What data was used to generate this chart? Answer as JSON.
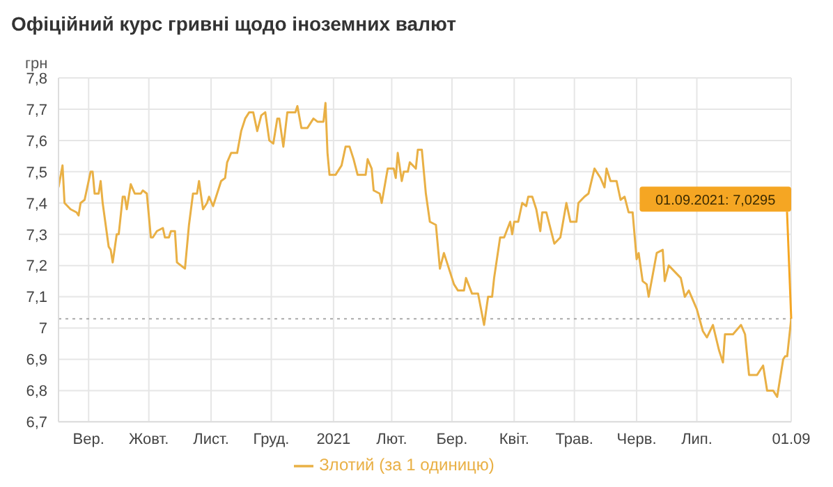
{
  "chart_data": {
    "type": "line",
    "title": "Офіційний курс гривні щодо іноземних валют",
    "ylabel": "грн",
    "x": [
      "2020-09-01",
      "2020-09-03",
      "2020-09-04",
      "2020-09-07",
      "2020-09-10",
      "2020-09-11",
      "2020-09-12",
      "2020-09-14",
      "2020-09-17",
      "2020-09-18",
      "2020-09-19",
      "2020-09-21",
      "2020-09-22",
      "2020-09-23",
      "2020-09-26",
      "2020-09-27",
      "2020-09-28",
      "2020-09-30",
      "2020-10-01",
      "2020-10-03",
      "2020-10-04",
      "2020-10-05",
      "2020-10-07",
      "2020-10-09",
      "2020-10-12",
      "2020-10-13",
      "2020-10-15",
      "2020-10-17",
      "2020-10-18",
      "2020-10-20",
      "2020-10-23",
      "2020-10-24",
      "2020-10-26",
      "2020-10-27",
      "2020-10-29",
      "2020-10-30",
      "2020-11-03",
      "2020-11-05",
      "2020-11-07",
      "2020-11-09",
      "2020-11-10",
      "2020-11-12",
      "2020-11-14",
      "2020-11-15",
      "2020-11-17",
      "2020-11-19",
      "2020-11-21",
      "2020-11-23",
      "2020-11-24",
      "2020-11-26",
      "2020-11-29",
      "2020-12-01",
      "2020-12-03",
      "2020-12-05",
      "2020-12-07",
      "2020-12-09",
      "2020-12-11",
      "2020-12-13",
      "2020-12-15",
      "2020-12-17",
      "2020-12-19",
      "2020-12-20",
      "2020-12-22",
      "2020-12-24",
      "2020-12-28",
      "2020-12-29",
      "2020-12-31",
      "2021-01-03",
      "2021-01-06",
      "2021-01-08",
      "2021-01-11",
      "2021-01-12",
      "2021-01-13",
      "2021-01-14",
      "2021-01-17",
      "2021-01-20",
      "2021-01-22",
      "2021-01-24",
      "2021-01-26",
      "2021-01-28",
      "2021-02-01",
      "2021-02-02",
      "2021-02-04",
      "2021-02-05",
      "2021-02-08",
      "2021-02-09",
      "2021-02-12",
      "2021-02-15",
      "2021-02-16",
      "2021-02-17",
      "2021-02-19",
      "2021-02-20",
      "2021-02-22",
      "2021-02-23",
      "2021-02-26",
      "2021-02-27",
      "2021-03-01",
      "2021-03-03",
      "2021-03-05",
      "2021-03-08",
      "2021-03-10",
      "2021-03-12",
      "2021-03-17",
      "2021-03-19",
      "2021-03-22",
      "2021-03-23",
      "2021-03-26",
      "2021-03-29",
      "2021-04-01",
      "2021-04-03",
      "2021-04-05",
      "2021-04-06",
      "2021-04-09",
      "2021-04-11",
      "2021-04-14",
      "2021-04-15",
      "2021-04-16",
      "2021-04-18",
      "2021-04-20",
      "2021-04-22",
      "2021-04-23",
      "2021-04-25",
      "2021-04-27",
      "2021-04-29",
      "2021-04-30",
      "2021-05-02",
      "2021-05-06",
      "2021-05-09",
      "2021-05-12",
      "2021-05-14",
      "2021-05-17",
      "2021-05-18",
      "2021-05-21",
      "2021-05-23",
      "2021-05-26",
      "2021-05-29",
      "2021-05-31",
      "2021-06-01",
      "2021-06-03",
      "2021-06-06",
      "2021-06-08",
      "2021-06-10",
      "2021-06-12",
      "2021-06-14",
      "2021-06-16",
      "2021-06-17",
      "2021-06-19",
      "2021-06-21",
      "2021-06-22",
      "2021-06-26",
      "2021-06-29",
      "2021-06-30",
      "2021-07-02",
      "2021-07-05",
      "2021-07-08",
      "2021-07-10",
      "2021-07-12",
      "2021-07-16",
      "2021-07-19",
      "2021-07-21",
      "2021-07-24",
      "2021-07-27",
      "2021-07-29",
      "2021-07-30",
      "2021-08-03",
      "2021-08-07",
      "2021-08-09",
      "2021-08-11",
      "2021-08-15",
      "2021-08-18",
      "2021-08-20",
      "2021-08-23",
      "2021-08-25",
      "2021-08-28",
      "2021-08-29",
      "2021-08-30",
      "2021-09-01"
    ],
    "series": [
      {
        "name": "Злотий (за 1 одиницю)",
        "color": "#e9b045",
        "values": [
          7.45,
          7.52,
          7.4,
          7.38,
          7.37,
          7.36,
          7.4,
          7.41,
          7.5,
          7.5,
          7.43,
          7.43,
          7.47,
          7.4,
          7.26,
          7.25,
          7.21,
          7.3,
          7.3,
          7.42,
          7.42,
          7.38,
          7.46,
          7.43,
          7.43,
          7.44,
          7.43,
          7.29,
          7.29,
          7.31,
          7.32,
          7.29,
          7.29,
          7.31,
          7.31,
          7.21,
          7.19,
          7.33,
          7.43,
          7.43,
          7.47,
          7.38,
          7.4,
          7.42,
          7.39,
          7.43,
          7.47,
          7.48,
          7.53,
          7.56,
          7.56,
          7.63,
          7.67,
          7.69,
          7.69,
          7.63,
          7.68,
          7.69,
          7.6,
          7.59,
          7.67,
          7.67,
          7.58,
          7.69,
          7.69,
          7.71,
          7.64,
          7.64,
          7.67,
          7.66,
          7.66,
          7.72,
          7.56,
          7.49,
          7.49,
          7.52,
          7.58,
          7.58,
          7.54,
          7.49,
          7.49,
          7.54,
          7.51,
          7.44,
          7.43,
          7.4,
          7.51,
          7.51,
          7.48,
          7.56,
          7.47,
          7.5,
          7.5,
          7.53,
          7.51,
          7.57,
          7.57,
          7.43,
          7.34,
          7.33,
          7.19,
          7.24,
          7.14,
          7.12,
          7.12,
          7.16,
          7.11,
          7.11,
          7.01,
          7.1,
          7.1,
          7.16,
          7.29,
          7.29,
          7.34,
          7.3,
          7.34,
          7.34,
          7.4,
          7.39,
          7.42,
          7.42,
          7.38,
          7.31,
          7.37,
          7.37,
          7.27,
          7.29,
          7.4,
          7.34,
          7.34,
          7.4,
          7.42,
          7.43,
          7.51,
          7.48,
          7.45,
          7.51,
          7.47,
          7.47,
          7.41,
          7.42,
          7.37,
          7.37,
          7.22,
          7.24,
          7.15,
          7.14,
          7.1,
          7.24,
          7.25,
          7.15,
          7.2,
          7.18,
          7.16,
          7.1,
          7.12,
          7.06,
          6.99,
          6.97,
          7.01,
          6.93,
          6.89,
          6.98,
          6.98,
          7.01,
          6.98,
          6.85,
          6.85,
          6.88,
          6.8,
          6.8,
          6.78,
          6.9,
          6.91,
          6.91,
          7.0295
        ]
      }
    ],
    "xlim": [
      "2020-09-01",
      "2021-09-01"
    ],
    "xticks": [
      {
        "value": "2020-09-16",
        "label": "Вер."
      },
      {
        "value": "2020-10-16",
        "label": "Жовт."
      },
      {
        "value": "2020-11-16",
        "label": "Лист."
      },
      {
        "value": "2020-12-16",
        "label": "Груд."
      },
      {
        "value": "2021-01-16",
        "label": "2021"
      },
      {
        "value": "2021-02-14",
        "label": "Лют."
      },
      {
        "value": "2021-03-16",
        "label": "Бер."
      },
      {
        "value": "2021-04-16",
        "label": "Квіт."
      },
      {
        "value": "2021-05-16",
        "label": "Трав."
      },
      {
        "value": "2021-06-16",
        "label": "Черв."
      },
      {
        "value": "2021-07-16",
        "label": "Лип."
      },
      {
        "value": "2021-09-01",
        "label": "01.09"
      }
    ],
    "ylim": [
      6.7,
      7.8
    ],
    "yticks": [
      {
        "value": 6.7,
        "label": "6,7"
      },
      {
        "value": 6.8,
        "label": "6,8"
      },
      {
        "value": 6.9,
        "label": "6,9"
      },
      {
        "value": 7,
        "label": "7"
      },
      {
        "value": 7.1,
        "label": "7,1"
      },
      {
        "value": 7.2,
        "label": "7,2"
      },
      {
        "value": 7.3,
        "label": "7,3"
      },
      {
        "value": 7.4,
        "label": "7,4"
      },
      {
        "value": 7.5,
        "label": "7,5"
      },
      {
        "value": 7.6,
        "label": "7,6"
      },
      {
        "value": 7.7,
        "label": "7,7"
      },
      {
        "value": 7.8,
        "label": "7,8"
      }
    ],
    "ref_lines": [
      {
        "axis": "y",
        "value": 7.0295,
        "label": null,
        "color": "#aaaaaa",
        "line_style": "dotted"
      }
    ],
    "annotations": [
      {
        "text": "01.09.2021: 7,0295",
        "x": "2021-09-01",
        "y": 7.0295
      }
    ],
    "grid": true,
    "legend": "bottom",
    "marker": "none",
    "line_style": "solid"
  }
}
